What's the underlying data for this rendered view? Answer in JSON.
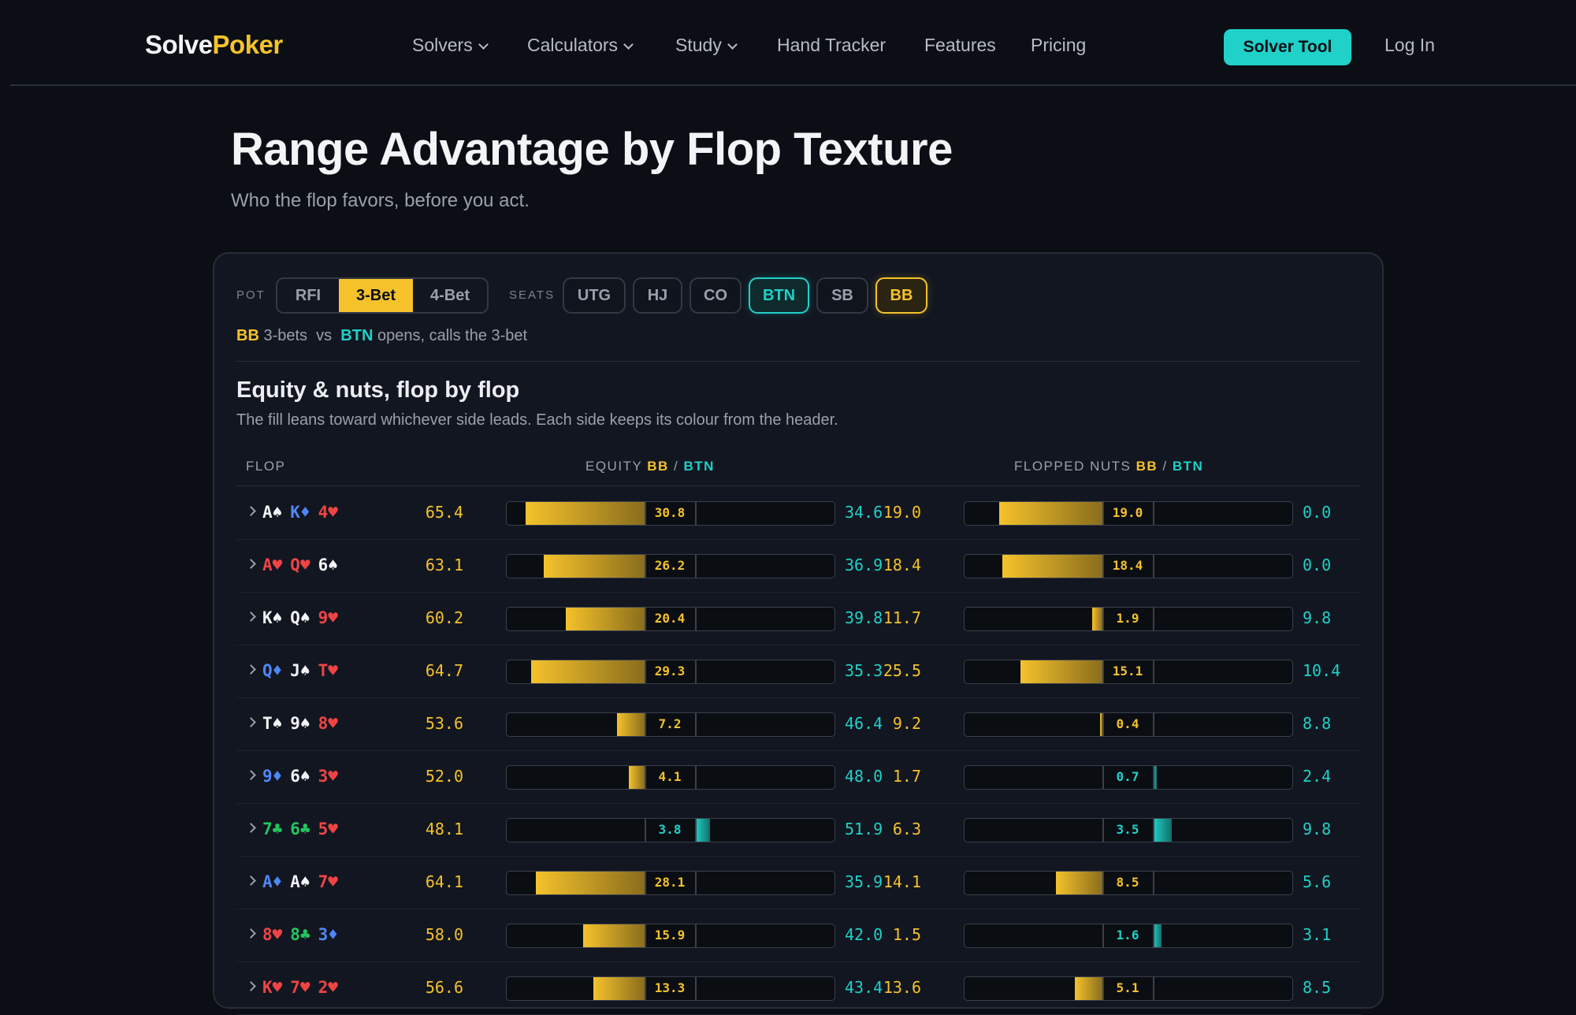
{
  "nav": {
    "logo_a": "Solve",
    "logo_b": "Poker",
    "links": [
      "Solvers",
      "Calculators",
      "Study",
      "Hand Tracker",
      "Features",
      "Pricing"
    ],
    "cta": "Solver Tool",
    "login": "Log In"
  },
  "header": {
    "title": "Range Advantage by Flop Texture",
    "subtitle": "Who the flop favors, before you act."
  },
  "controls": {
    "pot_label": "POT",
    "pot_options": [
      "RFI",
      "3-Bet",
      "4-Bet"
    ],
    "pot_selected": "3-Bet",
    "seats_label": "SEATS",
    "seats": [
      "UTG",
      "HJ",
      "CO",
      "BTN",
      "SB",
      "BB"
    ],
    "hero": "BTN",
    "villain": "BB"
  },
  "matchup": {
    "a": "BB",
    "a_text": "3-bets",
    "vs": "vs",
    "b": "BTN",
    "b_text": "opens, calls the 3-bet"
  },
  "section": {
    "title": "Equity & nuts, flop by flop",
    "subtitle": "The fill leans toward whichever side leads. Each side keeps its colour from the header."
  },
  "columns": {
    "flop": "FLOP",
    "equity": "EQUITY",
    "nuts": "FLOPPED NUTS",
    "a": "BB",
    "b": "BTN",
    "sep": "/"
  },
  "colors": {
    "bb": "#f5c22b",
    "btn": "#1fd1c8",
    "bg": "#0b0e14"
  },
  "rows": [
    {
      "cards": [
        [
          "A♠",
          "w"
        ],
        [
          "K♦",
          "b"
        ],
        [
          "4♥",
          "r"
        ]
      ],
      "eq_a": "65.4",
      "eq_diff": "30.8",
      "eq_b": "34.6",
      "nut_a": "19.0",
      "nut_diff": "19.0",
      "nut_b": "0.0"
    },
    {
      "cards": [
        [
          "A♥",
          "r"
        ],
        [
          "Q♥",
          "r"
        ],
        [
          "6♠",
          "w"
        ]
      ],
      "eq_a": "63.1",
      "eq_diff": "26.2",
      "eq_b": "36.9",
      "nut_a": "18.4",
      "nut_diff": "18.4",
      "nut_b": "0.0"
    },
    {
      "cards": [
        [
          "K♠",
          "w"
        ],
        [
          "Q♠",
          "w"
        ],
        [
          "9♥",
          "r"
        ]
      ],
      "eq_a": "60.2",
      "eq_diff": "20.4",
      "eq_b": "39.8",
      "nut_a": "11.7",
      "nut_diff": "1.9",
      "nut_b": "9.8"
    },
    {
      "cards": [
        [
          "Q♦",
          "b"
        ],
        [
          "J♠",
          "w"
        ],
        [
          "T♥",
          "r"
        ]
      ],
      "eq_a": "64.7",
      "eq_diff": "29.3",
      "eq_b": "35.3",
      "nut_a": "25.5",
      "nut_diff": "15.1",
      "nut_b": "10.4"
    },
    {
      "cards": [
        [
          "T♠",
          "w"
        ],
        [
          "9♠",
          "w"
        ],
        [
          "8♥",
          "r"
        ]
      ],
      "eq_a": "53.6",
      "eq_diff": "7.2",
      "eq_b": "46.4",
      "nut_a": "9.2",
      "nut_diff": "0.4",
      "nut_b": "8.8"
    },
    {
      "cards": [
        [
          "9♦",
          "b"
        ],
        [
          "6♠",
          "w"
        ],
        [
          "3♥",
          "r"
        ]
      ],
      "eq_a": "52.0",
      "eq_diff": "4.1",
      "eq_b": "48.0",
      "nut_a": "1.7",
      "nut_diff": "0.7",
      "nut_b": "2.4"
    },
    {
      "cards": [
        [
          "7♣",
          "g"
        ],
        [
          "6♣",
          "g"
        ],
        [
          "5♥",
          "r"
        ]
      ],
      "eq_a": "48.1",
      "eq_diff": "3.8",
      "eq_b": "51.9",
      "nut_a": "6.3",
      "nut_diff": "3.5",
      "nut_b": "9.8"
    },
    {
      "cards": [
        [
          "A♦",
          "b"
        ],
        [
          "A♠",
          "w"
        ],
        [
          "7♥",
          "r"
        ]
      ],
      "eq_a": "64.1",
      "eq_diff": "28.1",
      "eq_b": "35.9",
      "nut_a": "14.1",
      "nut_diff": "8.5",
      "nut_b": "5.6"
    },
    {
      "cards": [
        [
          "8♥",
          "r"
        ],
        [
          "8♣",
          "g"
        ],
        [
          "3♦",
          "b"
        ]
      ],
      "eq_a": "58.0",
      "eq_diff": "15.9",
      "eq_b": "42.0",
      "nut_a": "1.5",
      "nut_diff": "1.6",
      "nut_b": "3.1"
    },
    {
      "cards": [
        [
          "K♥",
          "r"
        ],
        [
          "7♥",
          "r"
        ],
        [
          "2♥",
          "r"
        ]
      ],
      "eq_a": "56.6",
      "eq_diff": "13.3",
      "eq_b": "43.4",
      "nut_a": "13.6",
      "nut_diff": "5.1",
      "nut_b": "8.5"
    }
  ]
}
